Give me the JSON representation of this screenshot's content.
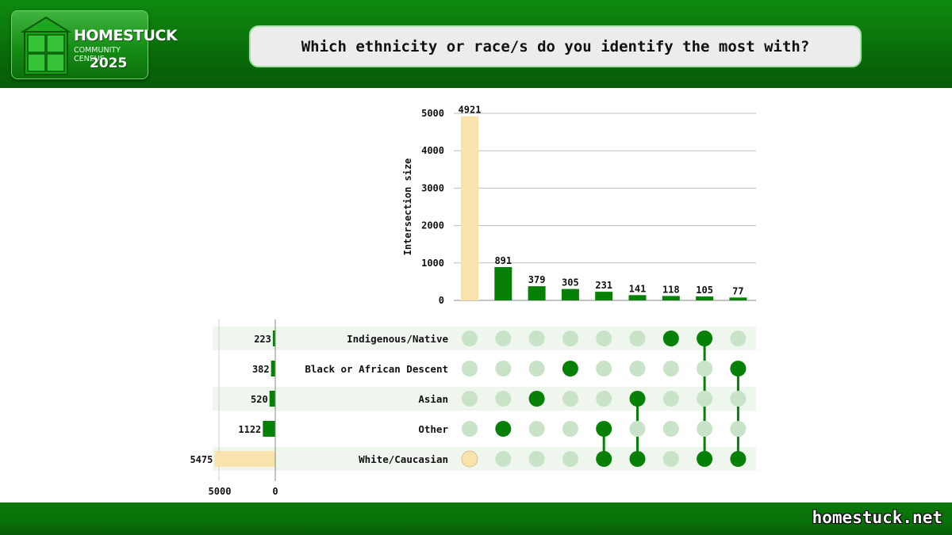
{
  "header": {
    "logo": {
      "title": "HOMESTUCK",
      "subtitle": "COMMUNITY CENSUS",
      "year": "2025"
    },
    "question": "Which ethnicity or race/s do you identify the most with?"
  },
  "footer": {
    "site": "homestuck.net"
  },
  "colors": {
    "green": "#078007",
    "highlight": "#f8e3ad",
    "dot_inactive": "#c9e3c9",
    "row_band": "#eef6ee"
  },
  "chart_data": {
    "type": "upset",
    "ylabel": "Intersection size",
    "ylim": [
      0,
      5000
    ],
    "yticks": [
      0,
      1000,
      2000,
      3000,
      4000,
      5000
    ],
    "sets": [
      {
        "name": "Indigenous/Native",
        "size": 223
      },
      {
        "name": "Black or African Descent",
        "size": 382
      },
      {
        "name": "Asian",
        "size": 520
      },
      {
        "name": "Other",
        "size": 1122
      },
      {
        "name": "White/Caucasian",
        "size": 5475
      }
    ],
    "set_size_axis_ticks": [
      5000,
      0
    ],
    "intersections": [
      {
        "sets": [
          "White/Caucasian"
        ],
        "size": 4921,
        "highlight": true
      },
      {
        "sets": [
          "Other"
        ],
        "size": 891
      },
      {
        "sets": [
          "Asian"
        ],
        "size": 379
      },
      {
        "sets": [
          "Black or African Descent"
        ],
        "size": 305
      },
      {
        "sets": [
          "Other",
          "White/Caucasian"
        ],
        "size": 231
      },
      {
        "sets": [
          "Asian",
          "White/Caucasian"
        ],
        "size": 141
      },
      {
        "sets": [
          "Indigenous/Native"
        ],
        "size": 118
      },
      {
        "sets": [
          "Indigenous/Native",
          "White/Caucasian"
        ],
        "size": 105
      },
      {
        "sets": [
          "Black or African Descent",
          "White/Caucasian"
        ],
        "size": 77
      }
    ]
  }
}
